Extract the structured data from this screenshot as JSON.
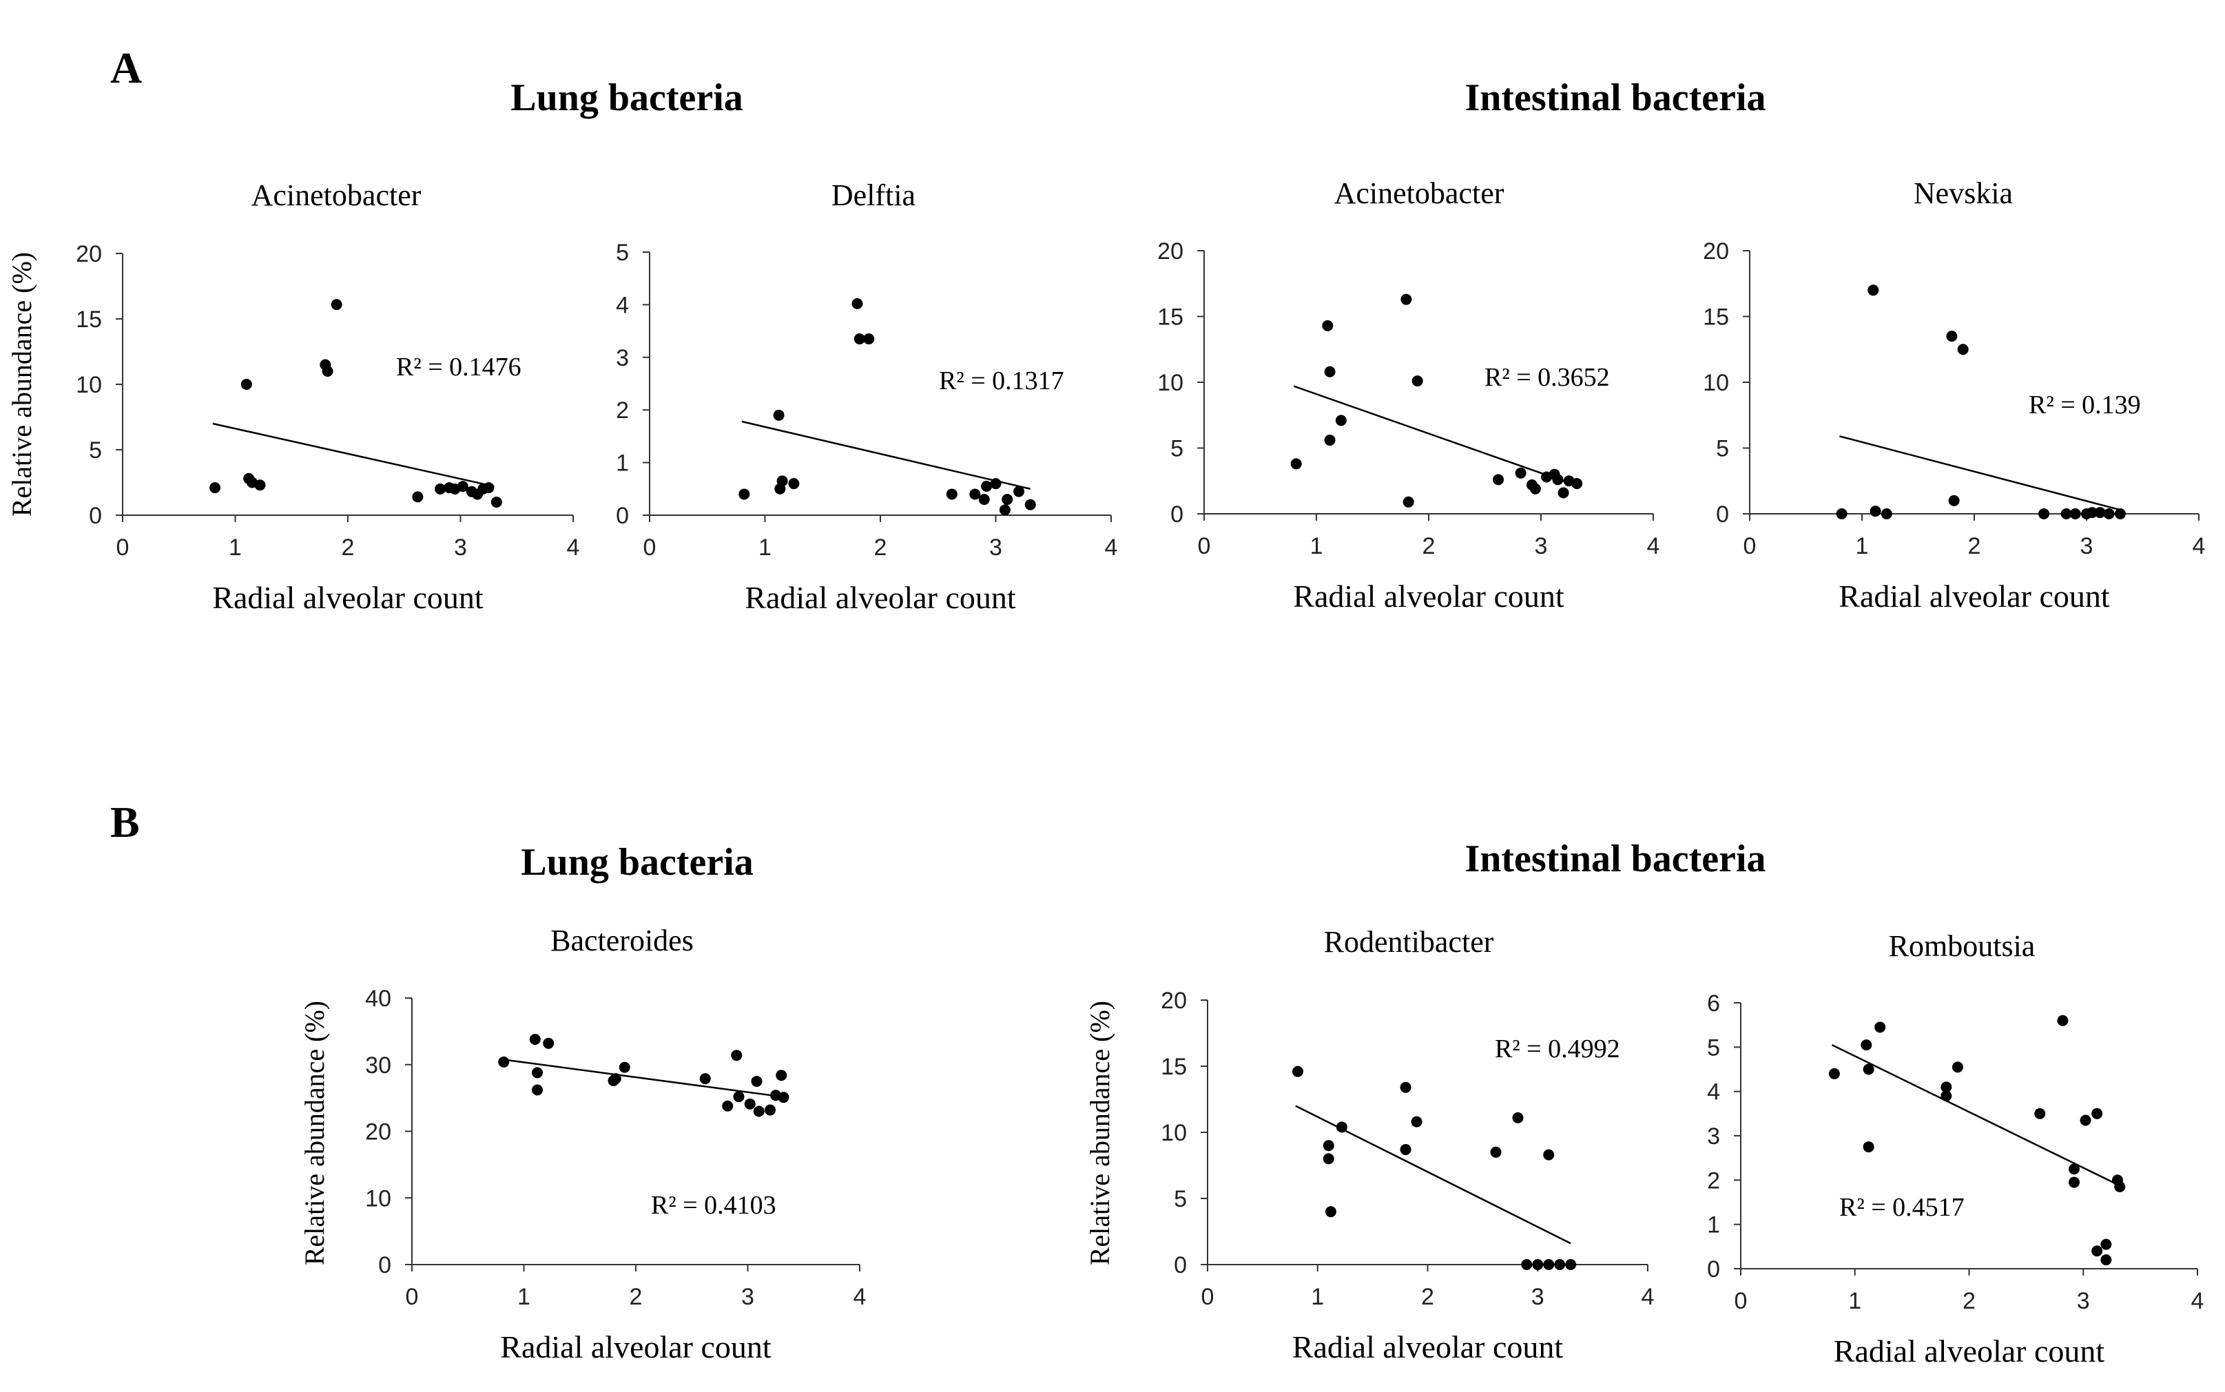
{
  "panels": [
    {
      "letter": "A",
      "groups": [
        {
          "title": "Lung bacteria"
        },
        {
          "title": "Intestinal bacteria"
        }
      ]
    },
    {
      "letter": "B",
      "groups": [
        {
          "title": "Lung bacteria"
        },
        {
          "title": "Intestinal bacteria"
        }
      ]
    }
  ],
  "chart_data": [
    {
      "type": "scatter",
      "panel": "A",
      "group": "Lung bacteria",
      "title": "Acinetobacter",
      "xlabel": "Radial alveolar count",
      "ylabel": "Relative abundance (%)",
      "xlim": [
        0,
        4
      ],
      "ylim": [
        0,
        20
      ],
      "xticks": [
        0,
        1,
        2,
        3,
        4
      ],
      "yticks": [
        0,
        5,
        10,
        15,
        20
      ],
      "r2_label": "R² = 0.1476",
      "trendline": {
        "x": [
          0.8,
          3.3
        ],
        "y": [
          7.0,
          2.2
        ]
      },
      "points": [
        [
          0.82,
          2.1
        ],
        [
          1.1,
          10
        ],
        [
          1.12,
          2.8
        ],
        [
          1.15,
          2.5
        ],
        [
          1.22,
          2.3
        ],
        [
          1.8,
          11.5
        ],
        [
          1.82,
          11
        ],
        [
          1.9,
          16.1
        ],
        [
          2.62,
          1.4
        ],
        [
          2.82,
          2.0
        ],
        [
          2.9,
          2.1
        ],
        [
          2.95,
          2.0
        ],
        [
          3.02,
          2.2
        ],
        [
          3.1,
          1.8
        ],
        [
          3.15,
          1.6
        ],
        [
          3.2,
          2.0
        ],
        [
          3.25,
          2.1
        ],
        [
          3.32,
          1.0
        ]
      ]
    },
    {
      "type": "scatter",
      "panel": "A",
      "group": "Lung bacteria",
      "title": "Delftia",
      "xlabel": "Radial alveolar count",
      "ylabel": "",
      "xlim": [
        0,
        4
      ],
      "ylim": [
        0,
        5
      ],
      "xticks": [
        0,
        1,
        2,
        3,
        4
      ],
      "yticks": [
        0,
        1,
        2,
        3,
        4,
        5
      ],
      "r2_label": "R² = 0.1317",
      "trendline": {
        "x": [
          0.8,
          3.3
        ],
        "y": [
          1.78,
          0.5
        ]
      },
      "points": [
        [
          0.82,
          0.4
        ],
        [
          1.12,
          1.9
        ],
        [
          1.13,
          0.5
        ],
        [
          1.15,
          0.65
        ],
        [
          1.25,
          0.6
        ],
        [
          1.8,
          4.02
        ],
        [
          1.82,
          3.35
        ],
        [
          1.9,
          3.35
        ],
        [
          2.62,
          0.4
        ],
        [
          2.82,
          0.4
        ],
        [
          2.9,
          0.3
        ],
        [
          2.92,
          0.55
        ],
        [
          3.0,
          0.6
        ],
        [
          3.08,
          0.1
        ],
        [
          3.1,
          0.3
        ],
        [
          3.2,
          0.45
        ],
        [
          3.3,
          0.2
        ]
      ]
    },
    {
      "type": "scatter",
      "panel": "A",
      "group": "Intestinal bacteria",
      "title": "Acinetobacter",
      "xlabel": "Radial alveolar count",
      "ylabel": "",
      "xlim": [
        0,
        4
      ],
      "ylim": [
        0,
        20
      ],
      "xticks": [
        0,
        1,
        2,
        3,
        4
      ],
      "yticks": [
        0,
        5,
        10,
        15,
        20
      ],
      "r2_label": "R² = 0.3652",
      "trendline": {
        "x": [
          0.8,
          3.3
        ],
        "y": [
          9.7,
          2.2
        ]
      },
      "points": [
        [
          0.82,
          3.8
        ],
        [
          1.1,
          14.3
        ],
        [
          1.12,
          10.8
        ],
        [
          1.12,
          5.6
        ],
        [
          1.22,
          7.1
        ],
        [
          1.8,
          16.3
        ],
        [
          1.82,
          0.9
        ],
        [
          1.9,
          10.1
        ],
        [
          2.62,
          2.6
        ],
        [
          2.82,
          3.1
        ],
        [
          2.92,
          2.2
        ],
        [
          2.95,
          1.9
        ],
        [
          3.05,
          2.8
        ],
        [
          3.12,
          3.0
        ],
        [
          3.15,
          2.6
        ],
        [
          3.2,
          1.6
        ],
        [
          3.25,
          2.5
        ],
        [
          3.32,
          2.3
        ]
      ]
    },
    {
      "type": "scatter",
      "panel": "A",
      "group": "Intestinal bacteria",
      "title": "Nevskia",
      "xlabel": "Radial alveolar count",
      "ylabel": "",
      "xlim": [
        0,
        4
      ],
      "ylim": [
        0,
        20
      ],
      "xticks": [
        0,
        1,
        2,
        3,
        4
      ],
      "yticks": [
        0,
        5,
        10,
        15,
        20
      ],
      "r2_label": "R² = 0.139",
      "trendline": {
        "x": [
          0.8,
          3.3
        ],
        "y": [
          5.9,
          0.3
        ]
      },
      "points": [
        [
          0.82,
          0
        ],
        [
          1.1,
          17
        ],
        [
          1.12,
          0.2
        ],
        [
          1.22,
          0
        ],
        [
          1.8,
          13.5
        ],
        [
          1.82,
          1.0
        ],
        [
          1.9,
          12.5
        ],
        [
          2.62,
          0
        ],
        [
          2.82,
          0
        ],
        [
          2.9,
          0
        ],
        [
          3.0,
          0
        ],
        [
          3.05,
          0.1
        ],
        [
          3.12,
          0.1
        ],
        [
          3.2,
          0
        ],
        [
          3.3,
          0
        ]
      ]
    },
    {
      "type": "scatter",
      "panel": "B",
      "group": "Lung bacteria",
      "title": "Bacteroides",
      "xlabel": "Radial alveolar count",
      "ylabel": "Relative abundance (%)",
      "xlim": [
        0,
        4
      ],
      "ylim": [
        0,
        40
      ],
      "xticks": [
        0,
        1,
        2,
        3,
        4
      ],
      "yticks": [
        0,
        10,
        20,
        30,
        40
      ],
      "r2_label": "R² = 0.4103",
      "trendline": {
        "x": [
          0.8,
          3.3
        ],
        "y": [
          30.8,
          25.2
        ]
      },
      "points": [
        [
          0.82,
          30.4
        ],
        [
          1.1,
          33.8
        ],
        [
          1.12,
          28.8
        ],
        [
          1.12,
          26.2
        ],
        [
          1.22,
          33.2
        ],
        [
          1.8,
          27.6
        ],
        [
          1.82,
          27.9
        ],
        [
          1.9,
          29.6
        ],
        [
          2.62,
          27.9
        ],
        [
          2.82,
          23.8
        ],
        [
          2.9,
          31.4
        ],
        [
          2.92,
          25.2
        ],
        [
          3.02,
          24.1
        ],
        [
          3.08,
          27.5
        ],
        [
          3.1,
          23.0
        ],
        [
          3.2,
          23.2
        ],
        [
          3.25,
          25.4
        ],
        [
          3.3,
          28.4
        ],
        [
          3.32,
          25.1
        ]
      ]
    },
    {
      "type": "scatter",
      "panel": "B",
      "group": "Intestinal bacteria",
      "title": "Rodentibacter",
      "xlabel": "Radial alveolar count",
      "ylabel": "Relative abundance (%)",
      "xlim": [
        0,
        4
      ],
      "ylim": [
        0,
        20
      ],
      "xticks": [
        0,
        1,
        2,
        3,
        4
      ],
      "yticks": [
        0,
        5,
        10,
        15,
        20
      ],
      "r2_label": "R² = 0.4992",
      "trendline": {
        "x": [
          0.8,
          3.3
        ],
        "y": [
          12.0,
          1.6
        ]
      },
      "points": [
        [
          0.82,
          14.6
        ],
        [
          1.1,
          9.0
        ],
        [
          1.1,
          8.0
        ],
        [
          1.12,
          4.0
        ],
        [
          1.22,
          10.4
        ],
        [
          1.8,
          13.4
        ],
        [
          1.8,
          8.7
        ],
        [
          1.9,
          10.8
        ],
        [
          2.62,
          8.5
        ],
        [
          2.82,
          11.1
        ],
        [
          2.9,
          0
        ],
        [
          3.0,
          0
        ],
        [
          3.1,
          8.3
        ],
        [
          3.1,
          0
        ],
        [
          3.2,
          0
        ],
        [
          3.3,
          0
        ]
      ]
    },
    {
      "type": "scatter",
      "panel": "B",
      "group": "Intestinal bacteria",
      "title": "Romboutsia",
      "xlabel": "Radial alveolar count",
      "ylabel": "",
      "xlim": [
        0,
        4
      ],
      "ylim": [
        0,
        6
      ],
      "xticks": [
        0,
        1,
        2,
        3,
        4
      ],
      "yticks": [
        0,
        1,
        2,
        3,
        4,
        5,
        6
      ],
      "r2_label": "R² = 0.4517",
      "trendline": {
        "x": [
          0.8,
          3.3
        ],
        "y": [
          5.05,
          1.9
        ]
      },
      "points": [
        [
          0.82,
          4.4
        ],
        [
          1.1,
          5.05
        ],
        [
          1.12,
          4.5
        ],
        [
          1.12,
          2.75
        ],
        [
          1.22,
          5.45
        ],
        [
          1.8,
          4.1
        ],
        [
          1.8,
          3.9
        ],
        [
          1.9,
          4.55
        ],
        [
          2.62,
          3.5
        ],
        [
          2.82,
          5.6
        ],
        [
          2.92,
          2.25
        ],
        [
          2.92,
          1.95
        ],
        [
          3.02,
          3.35
        ],
        [
          3.12,
          3.5
        ],
        [
          3.12,
          0.4
        ],
        [
          3.2,
          0.2
        ],
        [
          3.2,
          0.55
        ],
        [
          3.3,
          2.0
        ],
        [
          3.32,
          1.85
        ]
      ]
    }
  ]
}
